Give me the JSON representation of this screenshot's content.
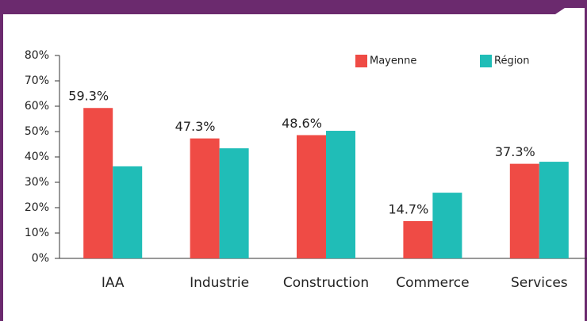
{
  "chart_data": {
    "type": "bar",
    "categories": [
      "IAA",
      "Industrie",
      "Construction",
      "Commerce",
      "Services"
    ],
    "series": [
      {
        "name": "Mayenne",
        "color": "#ef4b45",
        "values": [
          59.3,
          47.3,
          48.6,
          14.7,
          37.3
        ],
        "value_labels": [
          "59.3%",
          "47.3%",
          "48.6%",
          "14.7%",
          "37.3%"
        ]
      },
      {
        "name": "Région",
        "color": "#20bdb7",
        "values": [
          36.3,
          43.4,
          50.3,
          25.9,
          38.1
        ]
      }
    ],
    "ylim": [
      0,
      80
    ],
    "yticks": [
      {
        "value": 0,
        "label": "0%"
      },
      {
        "value": 10,
        "label": "10%"
      },
      {
        "value": 20,
        "label": "20%"
      },
      {
        "value": 30,
        "label": "30%"
      },
      {
        "value": 40,
        "label": "40%"
      },
      {
        "value": 50,
        "label": "50%"
      },
      {
        "value": 60,
        "label": "60%"
      },
      {
        "value": 70,
        "label": "70%"
      },
      {
        "value": 80,
        "label": "80%"
      }
    ],
    "legend": "top-right"
  }
}
